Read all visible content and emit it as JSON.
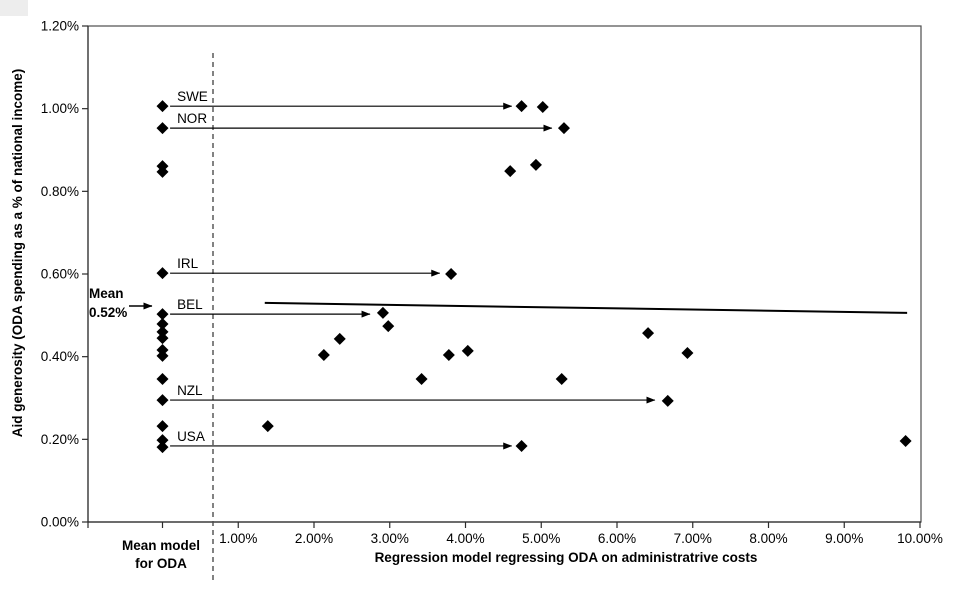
{
  "chart_data": {
    "type": "scatter",
    "title": "",
    "ylabel": "Aid generosity (ODA spending as a % of national income)",
    "xlabel": "Regression model regressing ODA on administratrive costs",
    "mean_model_axis_label": [
      "Mean model",
      "for ODA"
    ],
    "marker": "diamond",
    "grid": false,
    "legend": "none",
    "y_axis": {
      "min": 0,
      "max": 1.2,
      "tick_interval": 0.2,
      "tick_values": [
        0,
        0.2,
        0.4,
        0.6,
        0.8,
        1.0,
        1.2
      ],
      "tick_labels": [
        "0.00%",
        "0.20%",
        "0.40%",
        "0.60%",
        "0.80%",
        "1.00%",
        "1.20%"
      ]
    },
    "x_axis": {
      "tick_values": [
        1,
        2,
        3,
        4,
        5,
        6,
        7,
        8,
        9,
        10
      ],
      "tick_labels": [
        "1.00%",
        "2.00%",
        "3.00%",
        "4.00%",
        "5.00%",
        "6.00%",
        "7.00%",
        "8.00%",
        "9.00%",
        "10.00%"
      ],
      "mean_model_category_x": 0
    },
    "mean_annotation": {
      "text_lines": [
        "Mean",
        "0.52%"
      ],
      "value": 0.52
    },
    "mean_model_column": {
      "x": 0,
      "values": [
        1.006,
        0.953,
        0.861,
        0.847,
        0.602,
        0.503,
        0.479,
        0.46,
        0.445,
        0.416,
        0.402,
        0.346,
        0.295,
        0.232,
        0.198,
        0.181
      ]
    },
    "regression_points": [
      {
        "x": 4.74,
        "y": 1.006,
        "label": "SWE"
      },
      {
        "x": 5.02,
        "y": 1.004
      },
      {
        "x": 5.3,
        "y": 0.953,
        "label": "NOR"
      },
      {
        "x": 4.93,
        "y": 0.864
      },
      {
        "x": 4.59,
        "y": 0.849
      },
      {
        "x": 3.81,
        "y": 0.6,
        "label": "IRL"
      },
      {
        "x": 2.91,
        "y": 0.506,
        "label": "BEL"
      },
      {
        "x": 2.98,
        "y": 0.474
      },
      {
        "x": 2.34,
        "y": 0.443
      },
      {
        "x": 2.13,
        "y": 0.404
      },
      {
        "x": 4.03,
        "y": 0.414
      },
      {
        "x": 3.78,
        "y": 0.404
      },
      {
        "x": 6.41,
        "y": 0.457
      },
      {
        "x": 6.93,
        "y": 0.409
      },
      {
        "x": 3.42,
        "y": 0.346
      },
      {
        "x": 5.27,
        "y": 0.346
      },
      {
        "x": 6.67,
        "y": 0.293,
        "label": "NZL"
      },
      {
        "x": 1.39,
        "y": 0.232
      },
      {
        "x": 4.74,
        "y": 0.184,
        "label": "USA"
      },
      {
        "x": 9.81,
        "y": 0.196
      }
    ],
    "country_arrows": [
      {
        "label": "SWE",
        "y": 1.006,
        "x_start": 0.1,
        "x_end": 4.61
      },
      {
        "label": "NOR",
        "y": 0.953,
        "x_start": 0.1,
        "x_end": 5.14
      },
      {
        "label": "IRL",
        "y": 0.602,
        "x_start": 0.1,
        "x_end": 3.66
      },
      {
        "label": "BEL",
        "y": 0.503,
        "x_start": 0.1,
        "x_end": 2.74
      },
      {
        "label": "NZL",
        "y": 0.295,
        "x_start": 0.1,
        "x_end": 6.5
      },
      {
        "label": "USA",
        "y": 0.184,
        "x_start": 0.1,
        "x_end": 4.61
      }
    ],
    "regression_line": {
      "x1": 1.35,
      "y1": 0.53,
      "x2": 9.83,
      "y2": 0.506
    },
    "colors": {
      "data": "#000000",
      "plot_border": "#4d4d4d",
      "axis_line": "#2b2b2b",
      "divider": "#4d4d4d",
      "background": "#ffffff"
    }
  }
}
